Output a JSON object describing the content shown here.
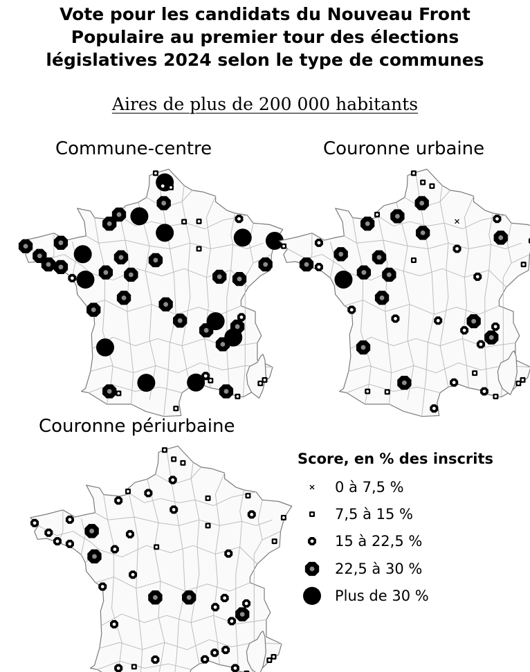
{
  "title_lines": [
    "Vote pour les candidats du Nouveau Front",
    "Populaire au premier tour des élections",
    "législatives 2024 selon le type de communes"
  ],
  "subtitle": "Aires de plus de 200 000 habitants",
  "panels": [
    {
      "title": "Commune-centre",
      "points": [
        {
          "lon": 2.35,
          "lat": 50.63,
          "cls": 5
        },
        {
          "lon": 2.25,
          "lat": 50.5,
          "cls": 3
        },
        {
          "lon": 2.65,
          "lat": 50.45,
          "cls": 2
        },
        {
          "lon": 1.9,
          "lat": 50.95,
          "cls": 2
        },
        {
          "lon": 2.3,
          "lat": 49.9,
          "cls": 4
        },
        {
          "lon": 1.1,
          "lat": 49.44,
          "cls": 5
        },
        {
          "lon": 0.1,
          "lat": 49.5,
          "cls": 4
        },
        {
          "lon": -0.37,
          "lat": 49.18,
          "cls": 4
        },
        {
          "lon": 2.35,
          "lat": 48.86,
          "cls": 5
        },
        {
          "lon": 3.3,
          "lat": 49.25,
          "cls": 2
        },
        {
          "lon": 4.03,
          "lat": 49.26,
          "cls": 2
        },
        {
          "lon": 4.03,
          "lat": 48.3,
          "cls": 2
        },
        {
          "lon": 6.0,
          "lat": 49.35,
          "cls": 3
        },
        {
          "lon": 6.18,
          "lat": 48.69,
          "cls": 5
        },
        {
          "lon": 7.75,
          "lat": 48.58,
          "cls": 5
        },
        {
          "lon": 7.3,
          "lat": 47.75,
          "cls": 4
        },
        {
          "lon": 5.04,
          "lat": 47.32,
          "cls": 4
        },
        {
          "lon": 6.02,
          "lat": 47.24,
          "cls": 4
        },
        {
          "lon": -4.49,
          "lat": 48.39,
          "cls": 4
        },
        {
          "lon": -3.8,
          "lat": 48.05,
          "cls": 4
        },
        {
          "lon": -2.76,
          "lat": 48.51,
          "cls": 4
        },
        {
          "lon": -3.37,
          "lat": 47.75,
          "cls": 4
        },
        {
          "lon": -2.76,
          "lat": 47.66,
          "cls": 4
        },
        {
          "lon": -1.68,
          "lat": 48.11,
          "cls": 5
        },
        {
          "lon": -2.2,
          "lat": 47.27,
          "cls": 3
        },
        {
          "lon": -1.55,
          "lat": 47.22,
          "cls": 5
        },
        {
          "lon": -0.55,
          "lat": 47.47,
          "cls": 4
        },
        {
          "lon": 0.2,
          "lat": 48.0,
          "cls": 4
        },
        {
          "lon": 0.69,
          "lat": 47.39,
          "cls": 4
        },
        {
          "lon": 1.9,
          "lat": 47.9,
          "cls": 4
        },
        {
          "lon": 0.34,
          "lat": 46.58,
          "cls": 4
        },
        {
          "lon": -1.15,
          "lat": 46.16,
          "cls": 4
        },
        {
          "lon": 2.4,
          "lat": 46.35,
          "cls": 4
        },
        {
          "lon": 3.1,
          "lat": 45.78,
          "cls": 4
        },
        {
          "lon": 4.85,
          "lat": 45.76,
          "cls": 5
        },
        {
          "lon": 5.72,
          "lat": 45.19,
          "cls": 5
        },
        {
          "lon": 4.39,
          "lat": 45.44,
          "cls": 4
        },
        {
          "lon": 5.2,
          "lat": 44.95,
          "cls": 4
        },
        {
          "lon": 5.92,
          "lat": 45.57,
          "cls": 4
        },
        {
          "lon": 6.12,
          "lat": 45.9,
          "cls": 3
        },
        {
          "lon": -0.58,
          "lat": 44.84,
          "cls": 5
        },
        {
          "lon": -0.37,
          "lat": 43.3,
          "cls": 4
        },
        {
          "lon": 0.08,
          "lat": 43.23,
          "cls": 2
        },
        {
          "lon": 1.44,
          "lat": 43.6,
          "cls": 5
        },
        {
          "lon": 2.9,
          "lat": 42.7,
          "cls": 2
        },
        {
          "lon": 3.88,
          "lat": 43.61,
          "cls": 5
        },
        {
          "lon": 4.36,
          "lat": 43.84,
          "cls": 3
        },
        {
          "lon": 4.6,
          "lat": 43.68,
          "cls": 2
        },
        {
          "lon": 5.37,
          "lat": 43.3,
          "cls": 4
        },
        {
          "lon": 5.93,
          "lat": 43.12,
          "cls": 2
        },
        {
          "lon": 7.26,
          "lat": 43.7,
          "cls": 2
        },
        {
          "lon": 7.05,
          "lat": 43.58,
          "cls": 2
        }
      ]
    },
    {
      "title": "Couronne urbaine",
      "points": [
        {
          "lon": 2.35,
          "lat": 50.63,
          "cls": 2
        },
        {
          "lon": 2.8,
          "lat": 50.5,
          "cls": 2
        },
        {
          "lon": 1.9,
          "lat": 50.95,
          "cls": 2
        },
        {
          "lon": 2.3,
          "lat": 49.9,
          "cls": 4
        },
        {
          "lon": 1.1,
          "lat": 49.44,
          "cls": 4
        },
        {
          "lon": 0.1,
          "lat": 49.5,
          "cls": 2
        },
        {
          "lon": -0.37,
          "lat": 49.18,
          "cls": 4
        },
        {
          "lon": 2.35,
          "lat": 48.86,
          "cls": 4
        },
        {
          "lon": 4.03,
          "lat": 49.26,
          "cls": 1
        },
        {
          "lon": 4.03,
          "lat": 48.3,
          "cls": 3
        },
        {
          "lon": 6.0,
          "lat": 49.35,
          "cls": 3
        },
        {
          "lon": 6.18,
          "lat": 48.69,
          "cls": 4
        },
        {
          "lon": 7.75,
          "lat": 48.58,
          "cls": 3
        },
        {
          "lon": 7.3,
          "lat": 47.75,
          "cls": 2
        },
        {
          "lon": 5.04,
          "lat": 47.32,
          "cls": 3
        },
        {
          "lon": -4.49,
          "lat": 48.39,
          "cls": 2
        },
        {
          "lon": -2.76,
          "lat": 48.51,
          "cls": 3
        },
        {
          "lon": -3.37,
          "lat": 47.75,
          "cls": 4
        },
        {
          "lon": -2.76,
          "lat": 47.66,
          "cls": 3
        },
        {
          "lon": -1.68,
          "lat": 48.11,
          "cls": 4
        },
        {
          "lon": -1.55,
          "lat": 47.22,
          "cls": 5
        },
        {
          "lon": -0.55,
          "lat": 47.47,
          "cls": 4
        },
        {
          "lon": 0.2,
          "lat": 48.0,
          "cls": 4
        },
        {
          "lon": 0.69,
          "lat": 47.39,
          "cls": 4
        },
        {
          "lon": 1.9,
          "lat": 47.9,
          "cls": 2
        },
        {
          "lon": 0.34,
          "lat": 46.58,
          "cls": 4
        },
        {
          "lon": -1.15,
          "lat": 46.16,
          "cls": 3
        },
        {
          "lon": 1.0,
          "lat": 45.85,
          "cls": 3
        },
        {
          "lon": 3.1,
          "lat": 45.78,
          "cls": 3
        },
        {
          "lon": 4.85,
          "lat": 45.76,
          "cls": 4
        },
        {
          "lon": 5.72,
          "lat": 45.19,
          "cls": 4
        },
        {
          "lon": 4.39,
          "lat": 45.44,
          "cls": 3
        },
        {
          "lon": 5.2,
          "lat": 44.95,
          "cls": 3
        },
        {
          "lon": 5.92,
          "lat": 45.57,
          "cls": 3
        },
        {
          "lon": -0.58,
          "lat": 44.84,
          "cls": 4
        },
        {
          "lon": -0.37,
          "lat": 43.3,
          "cls": 2
        },
        {
          "lon": 0.6,
          "lat": 43.28,
          "cls": 2
        },
        {
          "lon": 1.44,
          "lat": 43.6,
          "cls": 4
        },
        {
          "lon": 2.9,
          "lat": 42.7,
          "cls": 3
        },
        {
          "lon": 3.88,
          "lat": 43.61,
          "cls": 3
        },
        {
          "lon": 4.9,
          "lat": 43.94,
          "cls": 2
        },
        {
          "lon": 5.37,
          "lat": 43.3,
          "cls": 3
        },
        {
          "lon": 5.93,
          "lat": 43.12,
          "cls": 2
        },
        {
          "lon": 7.26,
          "lat": 43.7,
          "cls": 2
        },
        {
          "lon": 7.05,
          "lat": 43.58,
          "cls": 2
        }
      ]
    },
    {
      "title": "Couronne périurbaine",
      "points": [
        {
          "lon": 2.35,
          "lat": 50.63,
          "cls": 2
        },
        {
          "lon": 2.8,
          "lat": 50.5,
          "cls": 2
        },
        {
          "lon": 1.9,
          "lat": 50.95,
          "cls": 2
        },
        {
          "lon": 2.3,
          "lat": 49.9,
          "cls": 3
        },
        {
          "lon": 1.1,
          "lat": 49.44,
          "cls": 3
        },
        {
          "lon": 0.1,
          "lat": 49.5,
          "cls": 2
        },
        {
          "lon": -0.37,
          "lat": 49.18,
          "cls": 3
        },
        {
          "lon": 2.35,
          "lat": 48.86,
          "cls": 3
        },
        {
          "lon": 4.03,
          "lat": 49.26,
          "cls": 2
        },
        {
          "lon": 4.03,
          "lat": 48.3,
          "cls": 2
        },
        {
          "lon": 6.0,
          "lat": 49.35,
          "cls": 2
        },
        {
          "lon": 6.18,
          "lat": 48.69,
          "cls": 3
        },
        {
          "lon": 7.75,
          "lat": 48.58,
          "cls": 2
        },
        {
          "lon": 7.3,
          "lat": 47.75,
          "cls": 2
        },
        {
          "lon": 5.04,
          "lat": 47.32,
          "cls": 3
        },
        {
          "lon": -4.49,
          "lat": 48.39,
          "cls": 3
        },
        {
          "lon": -3.8,
          "lat": 48.05,
          "cls": 3
        },
        {
          "lon": -2.76,
          "lat": 48.51,
          "cls": 3
        },
        {
          "lon": -3.37,
          "lat": 47.75,
          "cls": 3
        },
        {
          "lon": -2.76,
          "lat": 47.66,
          "cls": 3
        },
        {
          "lon": -1.68,
          "lat": 48.11,
          "cls": 4
        },
        {
          "lon": -1.55,
          "lat": 47.22,
          "cls": 4
        },
        {
          "lon": -0.55,
          "lat": 47.47,
          "cls": 3
        },
        {
          "lon": 0.2,
          "lat": 48.0,
          "cls": 3
        },
        {
          "lon": 1.5,
          "lat": 47.55,
          "cls": 2
        },
        {
          "lon": 0.34,
          "lat": 46.58,
          "cls": 3
        },
        {
          "lon": -1.15,
          "lat": 46.16,
          "cls": 3
        },
        {
          "lon": 3.1,
          "lat": 45.78,
          "cls": 4
        },
        {
          "lon": 1.44,
          "lat": 45.78,
          "cls": 4
        },
        {
          "lon": 4.85,
          "lat": 45.76,
          "cls": 3
        },
        {
          "lon": 5.72,
          "lat": 45.19,
          "cls": 4
        },
        {
          "lon": 5.92,
          "lat": 45.57,
          "cls": 3
        },
        {
          "lon": 4.39,
          "lat": 45.44,
          "cls": 3
        },
        {
          "lon": 5.2,
          "lat": 44.95,
          "cls": 3
        },
        {
          "lon": -0.58,
          "lat": 44.84,
          "cls": 3
        },
        {
          "lon": -0.37,
          "lat": 43.3,
          "cls": 3
        },
        {
          "lon": 0.4,
          "lat": 43.35,
          "cls": 2
        },
        {
          "lon": 1.44,
          "lat": 43.6,
          "cls": 3
        },
        {
          "lon": 2.9,
          "lat": 42.7,
          "cls": 2
        },
        {
          "lon": 3.88,
          "lat": 43.61,
          "cls": 3
        },
        {
          "lon": 4.36,
          "lat": 43.84,
          "cls": 3
        },
        {
          "lon": 4.9,
          "lat": 43.94,
          "cls": 3
        },
        {
          "lon": 5.37,
          "lat": 43.3,
          "cls": 3
        },
        {
          "lon": 5.93,
          "lat": 43.12,
          "cls": 2
        },
        {
          "lon": 7.26,
          "lat": 43.7,
          "cls": 2
        },
        {
          "lon": 7.05,
          "lat": 43.58,
          "cls": 2
        }
      ]
    }
  ],
  "legend": {
    "title": "Score, en % des inscrits",
    "items": [
      {
        "label": "0 à 7,5 %",
        "cls": 1
      },
      {
        "label": "7,5 à 15 %",
        "cls": 2
      },
      {
        "label": "15 à 22,5 %",
        "cls": 3
      },
      {
        "label": "22,5 à 30 %",
        "cls": 4
      },
      {
        "label": "Plus de 30 %",
        "cls": 5
      }
    ]
  },
  "colors": {
    "land_fill": "#fafafa",
    "border_stroke": "#bdbdbd",
    "coast_stroke": "#7a7a7a",
    "symbol_fill": "#000000",
    "symbol_core": "#8c8c8c"
  }
}
